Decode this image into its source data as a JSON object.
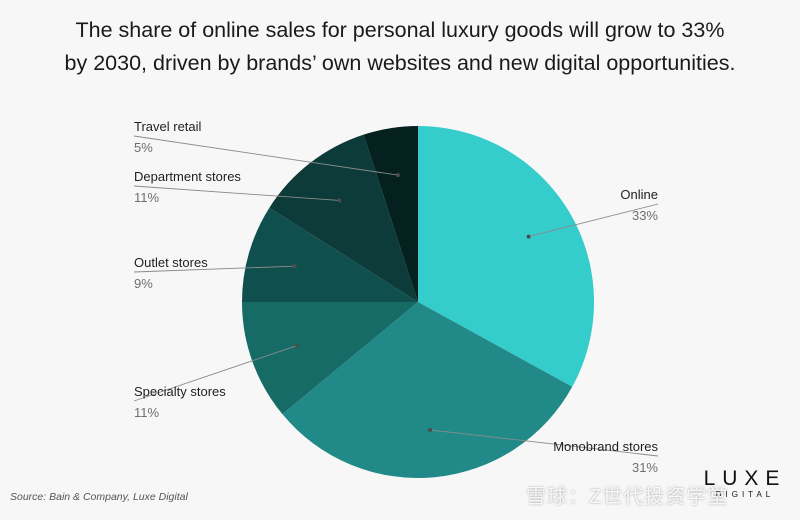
{
  "title_line1": "The share of online sales for personal luxury goods will grow to 33%",
  "title_line2": "by 2030, driven by brands’ own websites and new digital opportunities.",
  "source": "Source: Bain & Company, Luxe Digital",
  "logo_main": "LUXE",
  "logo_sub": "DIGITAL",
  "watermark": "雪球：Z世代投资学堂",
  "chart_data": {
    "type": "pie",
    "title": "The share of online sales for personal luxury goods will grow to 33% by 2030, driven by brands’ own websites and new digital opportunities.",
    "slices": [
      {
        "label": "Online",
        "value": 33,
        "value_label": "33%",
        "color": "#35cccc"
      },
      {
        "label": "Monobrand stores",
        "value": 31,
        "value_label": "31%",
        "color": "#218a88"
      },
      {
        "label": "Specialty stores",
        "value": 11,
        "value_label": "11%",
        "color": "#166b67"
      },
      {
        "label": "Outlet stores",
        "value": 9,
        "value_label": "9%",
        "color": "#0f504e"
      },
      {
        "label": "Department stores",
        "value": 11,
        "value_label": "11%",
        "color": "#0c3b39"
      },
      {
        "label": "Travel retail",
        "value": 5,
        "value_label": "5%",
        "color": "#04201f"
      }
    ],
    "start": "12 o'clock",
    "direction": "clockwise"
  }
}
